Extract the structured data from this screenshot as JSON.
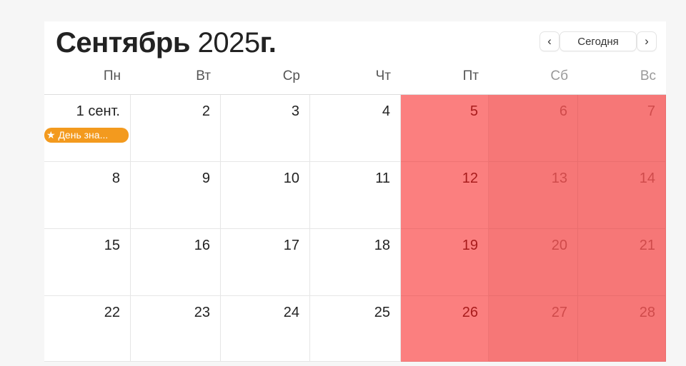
{
  "header": {
    "month": "Сентябрь",
    "year": "2025",
    "year_suffix": "г."
  },
  "nav": {
    "prev_icon": "chevron-left-icon",
    "prev": "‹",
    "today": "Сегодня",
    "next_icon": "chevron-right-icon",
    "next": "›"
  },
  "weekdays": [
    "Пн",
    "Вт",
    "Ср",
    "Чт",
    "Пт",
    "Сб",
    "Вс"
  ],
  "weeks": [
    [
      "1 сент.",
      "2",
      "3",
      "4",
      "5",
      "6",
      "7"
    ],
    [
      "8",
      "9",
      "10",
      "11",
      "12",
      "13",
      "14"
    ],
    [
      "15",
      "16",
      "17",
      "18",
      "19",
      "20",
      "21"
    ],
    [
      "22",
      "23",
      "24",
      "25",
      "26",
      "27",
      "28"
    ]
  ],
  "events": [
    {
      "day": "1 сент.",
      "icon": "star-icon",
      "star": "★",
      "label": "День зна..."
    }
  ],
  "colors": {
    "highlight": "#fb7f7f",
    "weekend_highlight": "#f67777",
    "event": "#f39a1e"
  }
}
